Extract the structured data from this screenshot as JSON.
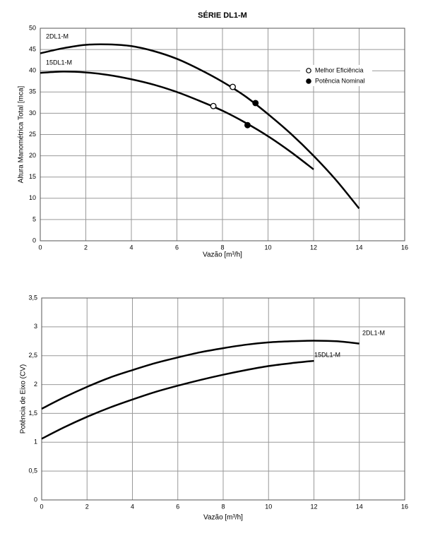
{
  "chart_data": [
    {
      "type": "line",
      "title": "SÉRIE DL1-M",
      "xlabel": "Vazão [m³/h]",
      "ylabel": "Altura Manométrica Total  [mca]",
      "xlim": [
        0,
        16
      ],
      "xticks": [
        0,
        2,
        4,
        6,
        8,
        10,
        12,
        14,
        16
      ],
      "ylim": [
        0,
        50
      ],
      "yticks": [
        0,
        5,
        10,
        15,
        20,
        25,
        30,
        35,
        40,
        45,
        50
      ],
      "grid": true,
      "legend": "upper right",
      "series": [
        {
          "name": "2DL1-M",
          "color": "#000000",
          "x": [
            0,
            1,
            2,
            3,
            4,
            5,
            6,
            7,
            8,
            9,
            10,
            11,
            12,
            13,
            14
          ],
          "values": [
            44.1,
            45.3,
            46.1,
            46.2,
            45.8,
            44.6,
            42.8,
            40.3,
            37.4,
            34.0,
            29.8,
            25.2,
            20.0,
            14.2,
            7.6
          ]
        },
        {
          "name": "15DL1-M",
          "color": "#000000",
          "x": [
            0,
            1,
            2,
            3,
            4,
            5,
            6,
            7,
            8,
            9,
            10,
            11,
            12
          ],
          "values": [
            39.5,
            39.8,
            39.6,
            39.0,
            38.0,
            36.7,
            35.0,
            32.9,
            30.6,
            27.8,
            24.6,
            20.9,
            16.8
          ]
        }
      ],
      "markers": [
        {
          "name": "Melhor Eficiência",
          "fill": "#ffffff",
          "color": "#000000",
          "x": [
            7.6,
            8.45
          ],
          "values": [
            31.7,
            36.2
          ]
        },
        {
          "name": "Potência Nominal",
          "fill": "#000000",
          "color": "#000000",
          "x": [
            9.1,
            9.45
          ],
          "values": [
            27.2,
            32.4
          ]
        }
      ]
    },
    {
      "type": "line",
      "xlabel": "Vazão [m³/h]",
      "ylabel": "Potência de Eixo (CV)",
      "xlim": [
        0,
        16
      ],
      "xticks": [
        0,
        2,
        4,
        6,
        8,
        10,
        12,
        14,
        16
      ],
      "ylim": [
        0,
        3.5
      ],
      "yticks": [
        0,
        {
          "value": 0.5,
          "label": "0,5"
        },
        1,
        {
          "value": 1.5,
          "label": "1,5"
        },
        2,
        {
          "value": 2.5,
          "label": "2,5"
        },
        3,
        {
          "value": 3.5,
          "label": "3,5"
        }
      ],
      "grid": true,
      "series": [
        {
          "name": "2DL1-M",
          "color": "#000000",
          "x": [
            0,
            1,
            2,
            3,
            4,
            5,
            6,
            7,
            8,
            9,
            10,
            11,
            12,
            13,
            14
          ],
          "values": [
            1.58,
            1.78,
            1.96,
            2.12,
            2.25,
            2.37,
            2.47,
            2.56,
            2.63,
            2.69,
            2.73,
            2.75,
            2.76,
            2.75,
            2.71
          ]
        },
        {
          "name": "15DL1-M",
          "color": "#000000",
          "x": [
            0,
            1,
            2,
            3,
            4,
            5,
            6,
            7,
            8,
            9,
            10,
            11,
            12
          ],
          "values": [
            1.06,
            1.26,
            1.44,
            1.6,
            1.74,
            1.87,
            1.98,
            2.08,
            2.17,
            2.25,
            2.32,
            2.37,
            2.41
          ]
        }
      ]
    }
  ]
}
